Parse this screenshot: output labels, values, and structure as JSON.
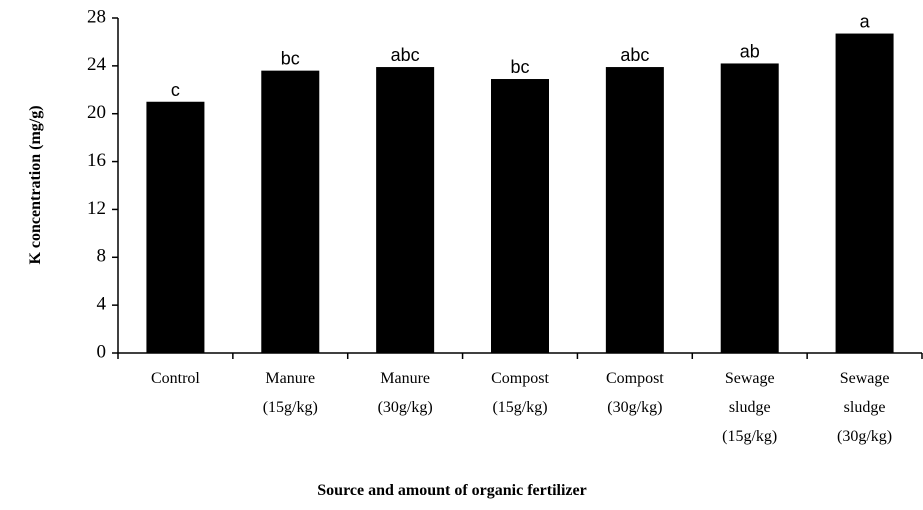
{
  "chart_data": {
    "type": "bar",
    "x_label": "Source and amount of organic fertilizer",
    "y_label": "K concentration (mg/g)",
    "categories": [
      "Control",
      "Manure (15g/kg)",
      "Manure (30g/kg)",
      "Compost (15g/kg)",
      "Compost (30g/kg)",
      "Sewage sludge (15g/kg)",
      "Sewage sludge (30g/kg)"
    ],
    "values": [
      21.0,
      23.6,
      23.9,
      22.9,
      23.9,
      24.2,
      26.7
    ],
    "annotations": [
      "c",
      "bc",
      "abc",
      "bc",
      "abc",
      "ab",
      "a"
    ],
    "color": "#000000",
    "ylim": [
      0,
      28
    ],
    "yticks": [
      0,
      4,
      8,
      12,
      16,
      20,
      24,
      28
    ],
    "grid": false
  }
}
